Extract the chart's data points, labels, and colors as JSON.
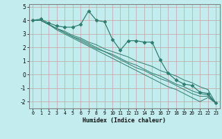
{
  "xlabel": "Humidex (Indice chaleur)",
  "x_values": [
    0,
    1,
    2,
    3,
    4,
    5,
    6,
    7,
    8,
    9,
    10,
    11,
    12,
    13,
    14,
    15,
    16,
    17,
    18,
    19,
    20,
    21,
    22,
    23
  ],
  "line1": [
    4.0,
    4.1,
    3.8,
    3.6,
    3.5,
    3.5,
    3.7,
    4.7,
    4.0,
    3.9,
    2.6,
    1.8,
    2.5,
    2.5,
    2.4,
    2.4,
    1.1,
    0.1,
    -0.4,
    -0.7,
    -0.8,
    -1.3,
    -1.4,
    -2.1
  ],
  "line2": [
    4.0,
    4.0,
    3.7,
    3.4,
    3.2,
    2.9,
    2.7,
    2.4,
    2.2,
    1.9,
    1.7,
    1.5,
    1.3,
    1.0,
    0.8,
    0.6,
    0.3,
    0.1,
    -0.1,
    -0.4,
    -0.6,
    -0.9,
    -1.1,
    -2.1
  ],
  "line3": [
    4.0,
    4.0,
    3.7,
    3.4,
    3.1,
    2.8,
    2.6,
    2.3,
    2.0,
    1.7,
    1.5,
    1.2,
    0.9,
    0.7,
    0.4,
    0.1,
    -0.1,
    -0.4,
    -0.7,
    -0.9,
    -1.2,
    -1.4,
    -1.5,
    -2.1
  ],
  "line4": [
    4.0,
    4.0,
    3.7,
    3.4,
    3.1,
    2.8,
    2.5,
    2.2,
    1.9,
    1.7,
    1.4,
    1.1,
    0.8,
    0.5,
    0.3,
    0.0,
    -0.3,
    -0.5,
    -0.8,
    -1.1,
    -1.4,
    -1.6,
    -1.6,
    -2.1
  ],
  "line5": [
    4.0,
    4.0,
    3.7,
    3.3,
    3.0,
    2.7,
    2.4,
    2.1,
    1.8,
    1.5,
    1.2,
    0.9,
    0.6,
    0.3,
    0.0,
    -0.3,
    -0.6,
    -0.9,
    -1.1,
    -1.4,
    -1.7,
    -2.0,
    -1.7,
    -2.1
  ],
  "color": "#2d7d6e",
  "bg_color": "#c2ecee",
  "grid_color": "#c8a0a0",
  "spine_color": "#808080",
  "ylim": [
    -2.5,
    5.2
  ],
  "yticks": [
    -2,
    -1,
    0,
    1,
    2,
    3,
    4,
    5
  ],
  "marker": "D",
  "marker_size": 2.5,
  "lw_main": 0.9,
  "lw_trend": 0.7
}
